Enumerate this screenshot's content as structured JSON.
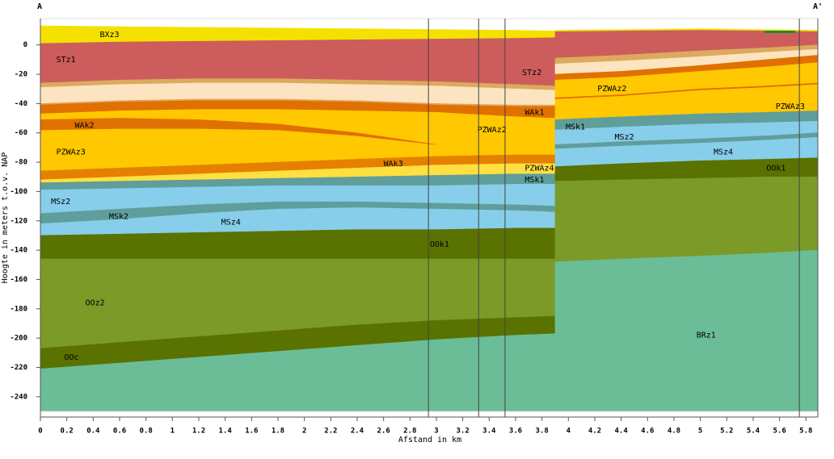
{
  "chart_data": {
    "type": "cross-section",
    "title_left": "A",
    "title_right": "A'",
    "xlabel": "Afstand in km",
    "ylabel": "Hoogte in meters t.o.v. NAP",
    "xlim": [
      0,
      5.89
    ],
    "ylim": [
      -250,
      18
    ],
    "xticks": [
      0,
      0.2,
      0.4,
      0.6,
      0.8,
      1,
      1.2,
      1.4,
      1.6,
      1.8,
      2,
      2.2,
      2.4,
      2.6,
      2.8,
      3,
      3.2,
      3.4,
      3.6,
      3.8,
      4,
      4.2,
      4.4,
      4.6,
      4.8,
      5,
      5.2,
      5.4,
      5.6,
      5.8
    ],
    "yticks": [
      0,
      -20,
      -40,
      -60,
      -80,
      -100,
      -120,
      -140,
      -160,
      -180,
      -200,
      -220,
      -240
    ],
    "boreholes": [
      2.94,
      3.32,
      3.52,
      5.75
    ],
    "layers": [
      {
        "name": "BXz3",
        "color": "#f5e100",
        "x": [
          0,
          0.6,
          1.2,
          1.8,
          2.4,
          3.0,
          3.6,
          3.9
        ],
        "top": [
          13,
          12.5,
          12,
          11.5,
          11,
          10.5,
          10,
          9.5
        ],
        "bottom": [
          1,
          2,
          2.5,
          3,
          3.5,
          4,
          4.5,
          5
        ]
      },
      {
        "name": "STz1",
        "color": "#cd5c5c",
        "x": [
          0,
          0.6,
          1.2,
          1.8,
          2.4,
          3.0
        ],
        "top": [
          1,
          2,
          2.5,
          3,
          3.5,
          4
        ],
        "bottom": [
          -26,
          -24,
          -23,
          -23,
          -24,
          -25
        ]
      },
      {
        "name": "STz2",
        "color": "#cd5c5c",
        "x": [
          3.0,
          3.6,
          3.9
        ],
        "top": [
          4,
          4.5,
          5
        ],
        "bottom": [
          -25,
          -27,
          -28
        ]
      },
      {
        "name": null,
        "color": "#dcaa5e",
        "x": [
          0,
          0.6,
          1.2,
          1.8,
          2.4,
          3.0,
          3.6,
          3.9
        ],
        "top": [
          -26,
          -24,
          -23,
          -23,
          -24,
          -25,
          -27,
          -28
        ],
        "bottom": [
          -29,
          -27,
          -26,
          -26,
          -27,
          -28,
          -30,
          -31
        ]
      },
      {
        "name": null,
        "color": "#fde4c0",
        "x": [
          0,
          0.6,
          1.2,
          1.8,
          2.4,
          3.0,
          3.6,
          3.9
        ],
        "top": [
          -29,
          -27,
          -26,
          -26,
          -27,
          -28,
          -30,
          -31
        ],
        "bottom": [
          -40,
          -38,
          -37,
          -37,
          -38,
          -40,
          -41,
          -41
        ]
      },
      {
        "name": null,
        "color": "#e3a15a",
        "x": [
          0,
          0.6,
          1.2,
          1.8,
          2.4,
          3.0,
          3.6,
          3.9
        ],
        "top": [
          -40,
          -38,
          -37,
          -37,
          -38,
          -40,
          -41,
          -41
        ],
        "bottom": [
          -41,
          -39,
          -38,
          -38,
          -39,
          -41,
          -42,
          -42
        ]
      },
      {
        "name": "WAk1",
        "color": "#e07000",
        "x": [
          0,
          0.6,
          1.2,
          1.8,
          2.4,
          3.0,
          3.6,
          3.9
        ],
        "top": [
          -41,
          -39,
          -38,
          -38,
          -39,
          -41,
          -42,
          -42
        ],
        "bottom": [
          -47,
          -45,
          -44,
          -44,
          -45,
          -46,
          -49,
          -50
        ]
      },
      {
        "name": "PZWAz2",
        "color": "#ffc800",
        "x": [
          0,
          0.6,
          1.2,
          1.8,
          2.4,
          3.0,
          3.6,
          3.9
        ],
        "top": [
          -47,
          -45,
          -44,
          -44,
          -45,
          -46,
          -49,
          -50
        ],
        "bottom": [
          -51,
          -50,
          -51,
          -54,
          -60,
          -68,
          -72,
          -74
        ]
      },
      {
        "name": "PZWAz3",
        "color": "#ffc800",
        "x": [
          0,
          0.6,
          1.2,
          1.8,
          2.4,
          3.0,
          3.6,
          3.9
        ],
        "top": [
          -58,
          -57,
          -57,
          -58,
          -62,
          -68,
          -72,
          -74
        ],
        "bottom": [
          -86,
          -84,
          -82,
          -80,
          -78,
          -76,
          -75,
          -75
        ]
      },
      {
        "name": "WAk2",
        "color": "#e07000",
        "x": [
          0,
          0.6,
          1.2,
          1.8,
          2.4,
          3.0
        ],
        "top": [
          -51,
          -50,
          -51,
          -54,
          -60,
          -68
        ],
        "bottom": [
          -58,
          -57,
          -57,
          -58,
          -62,
          -68
        ]
      },
      {
        "name": "WAk3",
        "color": "#e68000",
        "x": [
          0,
          0.6,
          1.2,
          1.8,
          2.4,
          3.0,
          3.6,
          3.9
        ],
        "top": [
          -86,
          -84,
          -82,
          -80,
          -78,
          -76,
          -75,
          -75
        ],
        "bottom": [
          -92,
          -90,
          -88,
          -86,
          -84,
          -82,
          -81,
          -81
        ]
      },
      {
        "name": "PZWAz4",
        "color": "#ffe040",
        "x": [
          0,
          0.6,
          1.2,
          1.8,
          2.4,
          3.0,
          3.6,
          3.9
        ],
        "top": [
          -92,
          -90,
          -88,
          -86,
          -84,
          -82,
          -81,
          -81
        ],
        "bottom": [
          -94,
          -93,
          -92,
          -91,
          -90,
          -89,
          -88,
          -88
        ]
      },
      {
        "name": "MSk1",
        "color": "#5f9e9a",
        "x": [
          0,
          0.6,
          1.2,
          1.8,
          2.4,
          3.0,
          3.6,
          3.9
        ],
        "top": [
          -94,
          -93,
          -92,
          -91,
          -90,
          -89,
          -88,
          -88
        ],
        "bottom": [
          -99,
          -98,
          -97,
          -96,
          -96,
          -96,
          -95,
          -95
        ]
      },
      {
        "name": "MSz2",
        "color": "#87ceeb",
        "x": [
          0,
          0.6,
          1.2,
          1.8,
          2.4,
          3.0,
          3.6,
          3.9
        ],
        "top": [
          -99,
          -98,
          -97,
          -96,
          -96,
          -96,
          -95,
          -95
        ],
        "bottom": [
          -115,
          -112,
          -109,
          -107,
          -107,
          -108,
          -109,
          -110
        ]
      },
      {
        "name": "MSk2",
        "color": "#5f9e9a",
        "x": [
          0,
          0.6,
          1.2,
          1.8,
          2.4,
          3.0,
          3.6,
          3.9
        ],
        "top": [
          -115,
          -112,
          -109,
          -107,
          -107,
          -108,
          -109,
          -110
        ],
        "bottom": [
          -122,
          -119,
          -115,
          -112,
          -111,
          -112,
          -113,
          -114
        ]
      },
      {
        "name": "MSz4",
        "color": "#87ceeb",
        "x": [
          0,
          0.6,
          1.2,
          1.8,
          2.4,
          3.0,
          3.6,
          3.9
        ],
        "top": [
          -122,
          -119,
          -115,
          -112,
          -111,
          -112,
          -113,
          -114
        ],
        "bottom": [
          -130,
          -129,
          -128,
          -127,
          -126,
          -126,
          -125,
          -125
        ]
      },
      {
        "name": "OOk1",
        "color": "#5a7200",
        "x": [
          0,
          0.6,
          1.2,
          1.8,
          2.4,
          3.0,
          3.6,
          3.9
        ],
        "top": [
          -130,
          -129,
          -128,
          -127,
          -126,
          -126,
          -125,
          -125
        ],
        "bottom": [
          -146,
          -146,
          -146,
          -146,
          -146,
          -146,
          -146,
          -146
        ]
      },
      {
        "name": "OOz2",
        "color": "#7b9a28",
        "x": [
          0,
          0.6,
          1.2,
          1.8,
          2.4,
          3.0,
          3.6,
          3.9
        ],
        "top": [
          -146,
          -146,
          -146,
          -146,
          -146,
          -146,
          -146,
          -146
        ],
        "bottom": [
          -207,
          -203,
          -199,
          -195,
          -191,
          -188,
          -186,
          -185
        ]
      },
      {
        "name": "OOc",
        "color": "#5a7200",
        "x": [
          0,
          0.6,
          1.2,
          1.8,
          2.4,
          3.0,
          3.6,
          3.9
        ],
        "top": [
          -207,
          -203,
          -199,
          -195,
          -191,
          -188,
          -186,
          -185
        ],
        "bottom": [
          -221,
          -217,
          -213,
          -209,
          -205,
          -201,
          -198,
          -197
        ]
      },
      {
        "name": null,
        "color": "#6bbd97",
        "x": [
          0,
          0.6,
          1.2,
          1.8,
          2.4,
          3.0,
          3.6,
          3.9
        ],
        "top": [
          -221,
          -217,
          -213,
          -209,
          -205,
          -201,
          -198,
          -197
        ],
        "bottom": [
          -250,
          -250,
          -250,
          -250,
          -250,
          -250,
          -250,
          -250
        ]
      },
      {
        "name": null,
        "color": "#f5e100",
        "x": [
          3.9,
          4.4,
          5.0,
          5.5,
          5.89
        ],
        "top": [
          10,
          10.5,
          11,
          10.5,
          10
        ],
        "bottom": [
          9,
          9.5,
          10,
          9.5,
          9
        ]
      },
      {
        "name": null,
        "color": "#cd5c5c",
        "x": [
          3.9,
          4.4,
          5.0,
          5.5,
          5.89
        ],
        "top": [
          9,
          9.5,
          10,
          9.5,
          9
        ],
        "bottom": [
          -9,
          -7,
          -4,
          -2,
          0
        ]
      },
      {
        "name": null,
        "color": "#dcaa5e",
        "x": [
          3.9,
          4.4,
          5.0,
          5.5,
          5.89
        ],
        "top": [
          -9,
          -7,
          -4,
          -2,
          0
        ],
        "bottom": [
          -13,
          -11,
          -8,
          -5,
          -3
        ]
      },
      {
        "name": null,
        "color": "#fde4c0",
        "x": [
          3.9,
          4.4,
          5.0,
          5.5,
          5.89
        ],
        "top": [
          -13,
          -11,
          -8,
          -5,
          -3
        ],
        "bottom": [
          -20,
          -18,
          -14,
          -10,
          -7
        ]
      },
      {
        "name": null,
        "color": "#e07000",
        "x": [
          3.9,
          4.4,
          5.0,
          5.5,
          5.89
        ],
        "top": [
          -20,
          -18,
          -14,
          -10,
          -7
        ],
        "bottom": [
          -24,
          -22,
          -18,
          -15,
          -12
        ]
      },
      {
        "name": "PZWAz2",
        "color": "#ffc800",
        "x": [
          3.9,
          4.4,
          5.0,
          5.5,
          5.89
        ],
        "top": [
          -24,
          -22,
          -18,
          -15,
          -12
        ],
        "bottom": [
          -36,
          -34,
          -30,
          -28,
          -26
        ]
      },
      {
        "name": null,
        "color": "#e07000",
        "x": [
          3.9,
          4.4,
          5.0,
          5.5,
          5.89
        ],
        "top": [
          -36,
          -34,
          -30,
          -28,
          -26
        ],
        "bottom": [
          -37,
          -35,
          -31,
          -29,
          -27
        ]
      },
      {
        "name": "PZWAz3",
        "color": "#ffc800",
        "x": [
          3.9,
          4.4,
          5.0,
          5.5,
          5.89
        ],
        "top": [
          -37,
          -35,
          -31,
          -29,
          -27
        ],
        "bottom": [
          -51,
          -49,
          -47,
          -46,
          -45
        ]
      },
      {
        "name": "MSk1",
        "color": "#5f9e9a",
        "x": [
          3.9,
          4.4,
          5.0,
          5.5,
          5.89
        ],
        "top": [
          -51,
          -49,
          -47,
          -46,
          -45
        ],
        "bottom": [
          -58,
          -56,
          -54,
          -53,
          -52
        ]
      },
      {
        "name": "MSz2",
        "color": "#87ceeb",
        "x": [
          3.9,
          4.4,
          5.0,
          5.5,
          5.89
        ],
        "top": [
          -58,
          -56,
          -54,
          -53,
          -52
        ],
        "bottom": [
          -68,
          -66,
          -64,
          -62,
          -60
        ]
      },
      {
        "name": null,
        "color": "#5f9e9a",
        "x": [
          3.9,
          4.4,
          5.0,
          5.5,
          5.89
        ],
        "top": [
          -68,
          -66,
          -64,
          -62,
          -60
        ],
        "bottom": [
          -71,
          -69,
          -67,
          -65,
          -63
        ]
      },
      {
        "name": "MSz4",
        "color": "#87ceeb",
        "x": [
          3.9,
          4.4,
          5.0,
          5.5,
          5.89
        ],
        "top": [
          -71,
          -69,
          -67,
          -65,
          -63
        ],
        "bottom": [
          -83,
          -81,
          -79,
          -78,
          -77
        ]
      },
      {
        "name": "OOk1",
        "color": "#5a7200",
        "x": [
          3.9,
          4.4,
          5.0,
          5.5,
          5.89
        ],
        "top": [
          -83,
          -81,
          -79,
          -78,
          -77
        ],
        "bottom": [
          -93,
          -92,
          -91,
          -90,
          -90
        ]
      },
      {
        "name": null,
        "color": "#7b9a28",
        "x": [
          3.9,
          4.4,
          5.0,
          5.5,
          5.89
        ],
        "top": [
          -93,
          -92,
          -91,
          -90,
          -90
        ],
        "bottom": [
          -148,
          -146,
          -144,
          -142,
          -140
        ]
      },
      {
        "name": "BRz1",
        "color": "#6bbd97",
        "x": [
          3.9,
          4.4,
          5.0,
          5.5,
          5.89
        ],
        "top": [
          -148,
          -146,
          -144,
          -142,
          -140
        ],
        "bottom": [
          -250,
          -250,
          -250,
          -250,
          -250
        ]
      }
    ]
  }
}
